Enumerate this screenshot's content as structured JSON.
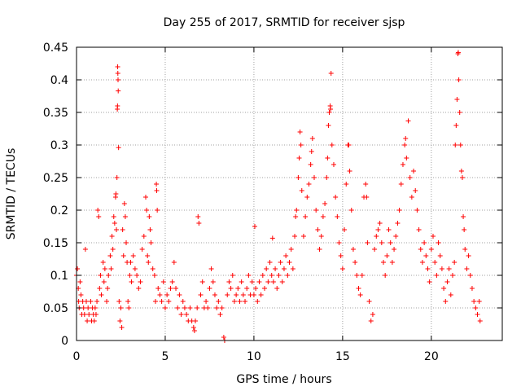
{
  "chart_data": {
    "type": "scatter",
    "title": "Day 255 of 2017, SRMTID for receiver sjsp",
    "xlabel": "GPS time / hours",
    "ylabel": "SRMTID / TECUs",
    "xlim": [
      0,
      24
    ],
    "ylim": [
      0,
      0.45
    ],
    "x_ticks": [
      {
        "value": 0,
        "label": "0"
      },
      {
        "value": 5,
        "label": "5"
      },
      {
        "value": 10,
        "label": "10"
      },
      {
        "value": 15,
        "label": "15"
      },
      {
        "value": 20,
        "label": "20"
      }
    ],
    "y_ticks": [
      {
        "value": 0,
        "label": "0"
      },
      {
        "value": 0.05,
        "label": "0.05"
      },
      {
        "value": 0.1,
        "label": "0.1"
      },
      {
        "value": 0.15,
        "label": "0.15"
      },
      {
        "value": 0.2,
        "label": "0.2"
      },
      {
        "value": 0.25,
        "label": "0.25"
      },
      {
        "value": 0.3,
        "label": "0.3"
      },
      {
        "value": 0.35,
        "label": "0.35"
      },
      {
        "value": 0.4,
        "label": "0.4"
      },
      {
        "value": 0.45,
        "label": "0.45"
      }
    ],
    "grid": true,
    "marker": "+",
    "marker_color": "#ff0000",
    "series": [
      {
        "name": "SRMTID",
        "points": [
          [
            0.0,
            0.1
          ],
          [
            0.05,
            0.11
          ],
          [
            0.1,
            0.08
          ],
          [
            0.12,
            0.06
          ],
          [
            0.15,
            0.05
          ],
          [
            0.2,
            0.09
          ],
          [
            0.25,
            0.07
          ],
          [
            0.3,
            0.04
          ],
          [
            0.35,
            0.06
          ],
          [
            0.4,
            0.05
          ],
          [
            0.45,
            0.04
          ],
          [
            0.5,
            0.14
          ],
          [
            0.55,
            0.06
          ],
          [
            0.6,
            0.03
          ],
          [
            0.65,
            0.05
          ],
          [
            0.7,
            0.04
          ],
          [
            0.8,
            0.06
          ],
          [
            0.85,
            0.03
          ],
          [
            0.9,
            0.05
          ],
          [
            0.95,
            0.04
          ],
          [
            1.0,
            0.03
          ],
          [
            1.05,
            0.05
          ],
          [
            1.1,
            0.04
          ],
          [
            1.15,
            0.06
          ],
          [
            1.2,
            0.2
          ],
          [
            1.25,
            0.19
          ],
          [
            1.3,
            0.08
          ],
          [
            1.35,
            0.1
          ],
          [
            1.4,
            0.07
          ],
          [
            1.5,
            0.12
          ],
          [
            1.55,
            0.09
          ],
          [
            1.6,
            0.11
          ],
          [
            1.7,
            0.06
          ],
          [
            1.75,
            0.08
          ],
          [
            1.8,
            0.1
          ],
          [
            1.9,
            0.13
          ],
          [
            1.95,
            0.11
          ],
          [
            2.0,
            0.16
          ],
          [
            2.05,
            0.14
          ],
          [
            2.1,
            0.19
          ],
          [
            2.15,
            0.18
          ],
          [
            2.2,
            0.22
          ],
          [
            2.22,
            0.225
          ],
          [
            2.25,
            0.17
          ],
          [
            2.28,
            0.25
          ],
          [
            2.3,
            0.355
          ],
          [
            2.31,
            0.36
          ],
          [
            2.32,
            0.42
          ],
          [
            2.33,
            0.41
          ],
          [
            2.34,
            0.4
          ],
          [
            2.35,
            0.383
          ],
          [
            2.37,
            0.296
          ],
          [
            2.4,
            0.06
          ],
          [
            2.45,
            0.03
          ],
          [
            2.5,
            0.05
          ],
          [
            2.55,
            0.02
          ],
          [
            2.6,
            0.17
          ],
          [
            2.65,
            0.13
          ],
          [
            2.7,
            0.21
          ],
          [
            2.75,
            0.19
          ],
          [
            2.8,
            0.15
          ],
          [
            2.85,
            0.12
          ],
          [
            2.9,
            0.06
          ],
          [
            2.95,
            0.05
          ],
          [
            3.0,
            0.1
          ],
          [
            3.05,
            0.12
          ],
          [
            3.1,
            0.09
          ],
          [
            3.2,
            0.13
          ],
          [
            3.3,
            0.11
          ],
          [
            3.4,
            0.1
          ],
          [
            3.5,
            0.08
          ],
          [
            3.6,
            0.09
          ],
          [
            3.7,
            0.14
          ],
          [
            3.8,
            0.16
          ],
          [
            3.9,
            0.22
          ],
          [
            3.95,
            0.2
          ],
          [
            4.0,
            0.13
          ],
          [
            4.05,
            0.12
          ],
          [
            4.1,
            0.19
          ],
          [
            4.15,
            0.17
          ],
          [
            4.2,
            0.15
          ],
          [
            4.3,
            0.11
          ],
          [
            4.4,
            0.1
          ],
          [
            4.45,
            0.06
          ],
          [
            4.5,
            0.24
          ],
          [
            4.52,
            0.23
          ],
          [
            4.55,
            0.2
          ],
          [
            4.6,
            0.08
          ],
          [
            4.7,
            0.07
          ],
          [
            4.8,
            0.06
          ],
          [
            4.9,
            0.09
          ],
          [
            5.0,
            0.05
          ],
          [
            5.1,
            0.07
          ],
          [
            5.2,
            0.06
          ],
          [
            5.3,
            0.08
          ],
          [
            5.4,
            0.09
          ],
          [
            5.5,
            0.12
          ],
          [
            5.6,
            0.08
          ],
          [
            5.7,
            0.05
          ],
          [
            5.8,
            0.07
          ],
          [
            5.9,
            0.04
          ],
          [
            6.0,
            0.06
          ],
          [
            6.1,
            0.05
          ],
          [
            6.2,
            0.04
          ],
          [
            6.3,
            0.03
          ],
          [
            6.4,
            0.05
          ],
          [
            6.5,
            0.03
          ],
          [
            6.6,
            0.02
          ],
          [
            6.65,
            0.015
          ],
          [
            6.7,
            0.03
          ],
          [
            6.8,
            0.05
          ],
          [
            6.85,
            0.19
          ],
          [
            6.9,
            0.18
          ],
          [
            7.0,
            0.07
          ],
          [
            7.1,
            0.09
          ],
          [
            7.2,
            0.05
          ],
          [
            7.3,
            0.06
          ],
          [
            7.4,
            0.05
          ],
          [
            7.5,
            0.08
          ],
          [
            7.6,
            0.11
          ],
          [
            7.7,
            0.09
          ],
          [
            7.8,
            0.07
          ],
          [
            7.9,
            0.05
          ],
          [
            8.0,
            0.06
          ],
          [
            8.1,
            0.04
          ],
          [
            8.2,
            0.05
          ],
          [
            8.3,
            0.005
          ],
          [
            8.35,
            0.0
          ],
          [
            8.5,
            0.07
          ],
          [
            8.6,
            0.09
          ],
          [
            8.7,
            0.08
          ],
          [
            8.8,
            0.1
          ],
          [
            8.9,
            0.06
          ],
          [
            9.0,
            0.07
          ],
          [
            9.1,
            0.08
          ],
          [
            9.2,
            0.06
          ],
          [
            9.3,
            0.09
          ],
          [
            9.4,
            0.07
          ],
          [
            9.5,
            0.06
          ],
          [
            9.6,
            0.08
          ],
          [
            9.7,
            0.1
          ],
          [
            9.8,
            0.07
          ],
          [
            9.9,
            0.09
          ],
          [
            10.0,
            0.07
          ],
          [
            10.05,
            0.175
          ],
          [
            10.1,
            0.08
          ],
          [
            10.2,
            0.06
          ],
          [
            10.3,
            0.09
          ],
          [
            10.4,
            0.07
          ],
          [
            10.5,
            0.1
          ],
          [
            10.6,
            0.08
          ],
          [
            10.7,
            0.11
          ],
          [
            10.8,
            0.09
          ],
          [
            10.9,
            0.12
          ],
          [
            11.0,
            0.1
          ],
          [
            11.05,
            0.157
          ],
          [
            11.1,
            0.09
          ],
          [
            11.2,
            0.11
          ],
          [
            11.3,
            0.08
          ],
          [
            11.4,
            0.1
          ],
          [
            11.5,
            0.12
          ],
          [
            11.6,
            0.09
          ],
          [
            11.7,
            0.11
          ],
          [
            11.8,
            0.13
          ],
          [
            11.9,
            0.1
          ],
          [
            12.0,
            0.12
          ],
          [
            12.1,
            0.14
          ],
          [
            12.2,
            0.11
          ],
          [
            12.3,
            0.16
          ],
          [
            12.35,
            0.19
          ],
          [
            12.4,
            0.2
          ],
          [
            12.5,
            0.25
          ],
          [
            12.55,
            0.28
          ],
          [
            12.6,
            0.32
          ],
          [
            12.65,
            0.3
          ],
          [
            12.7,
            0.23
          ],
          [
            12.8,
            0.16
          ],
          [
            12.9,
            0.19
          ],
          [
            13.0,
            0.22
          ],
          [
            13.1,
            0.24
          ],
          [
            13.2,
            0.27
          ],
          [
            13.25,
            0.29
          ],
          [
            13.3,
            0.31
          ],
          [
            13.4,
            0.25
          ],
          [
            13.5,
            0.2
          ],
          [
            13.6,
            0.17
          ],
          [
            13.7,
            0.14
          ],
          [
            13.8,
            0.16
          ],
          [
            13.9,
            0.19
          ],
          [
            14.0,
            0.21
          ],
          [
            14.1,
            0.25
          ],
          [
            14.15,
            0.28
          ],
          [
            14.2,
            0.33
          ],
          [
            14.25,
            0.35
          ],
          [
            14.3,
            0.36
          ],
          [
            14.32,
            0.355
          ],
          [
            14.35,
            0.41
          ],
          [
            14.4,
            0.3
          ],
          [
            14.5,
            0.27
          ],
          [
            14.6,
            0.22
          ],
          [
            14.7,
            0.19
          ],
          [
            14.8,
            0.15
          ],
          [
            14.9,
            0.13
          ],
          [
            15.0,
            0.11
          ],
          [
            15.1,
            0.17
          ],
          [
            15.2,
            0.24
          ],
          [
            15.3,
            0.3
          ],
          [
            15.35,
            0.3
          ],
          [
            15.4,
            0.26
          ],
          [
            15.5,
            0.2
          ],
          [
            15.6,
            0.14
          ],
          [
            15.7,
            0.12
          ],
          [
            15.8,
            0.1
          ],
          [
            15.9,
            0.08
          ],
          [
            16.0,
            0.07
          ],
          [
            16.1,
            0.1
          ],
          [
            16.2,
            0.22
          ],
          [
            16.3,
            0.24
          ],
          [
            16.35,
            0.22
          ],
          [
            16.4,
            0.15
          ],
          [
            16.5,
            0.06
          ],
          [
            16.6,
            0.03
          ],
          [
            16.7,
            0.04
          ],
          [
            16.8,
            0.14
          ],
          [
            16.9,
            0.16
          ],
          [
            17.0,
            0.17
          ],
          [
            17.1,
            0.18
          ],
          [
            17.2,
            0.15
          ],
          [
            17.3,
            0.12
          ],
          [
            17.4,
            0.1
          ],
          [
            17.5,
            0.13
          ],
          [
            17.6,
            0.17
          ],
          [
            17.7,
            0.15
          ],
          [
            17.8,
            0.12
          ],
          [
            17.9,
            0.14
          ],
          [
            18.0,
            0.16
          ],
          [
            18.1,
            0.18
          ],
          [
            18.2,
            0.2
          ],
          [
            18.3,
            0.24
          ],
          [
            18.4,
            0.27
          ],
          [
            18.5,
            0.3
          ],
          [
            18.55,
            0.31
          ],
          [
            18.6,
            0.28
          ],
          [
            18.7,
            0.337
          ],
          [
            18.8,
            0.25
          ],
          [
            18.9,
            0.22
          ],
          [
            19.0,
            0.26
          ],
          [
            19.1,
            0.23
          ],
          [
            19.2,
            0.2
          ],
          [
            19.3,
            0.17
          ],
          [
            19.4,
            0.14
          ],
          [
            19.5,
            0.12
          ],
          [
            19.6,
            0.15
          ],
          [
            19.7,
            0.13
          ],
          [
            19.8,
            0.11
          ],
          [
            19.9,
            0.09
          ],
          [
            20.0,
            0.14
          ],
          [
            20.1,
            0.16
          ],
          [
            20.2,
            0.12
          ],
          [
            20.3,
            0.1
          ],
          [
            20.4,
            0.15
          ],
          [
            20.5,
            0.13
          ],
          [
            20.6,
            0.11
          ],
          [
            20.7,
            0.08
          ],
          [
            20.8,
            0.06
          ],
          [
            20.9,
            0.09
          ],
          [
            21.0,
            0.11
          ],
          [
            21.1,
            0.07
          ],
          [
            21.2,
            0.1
          ],
          [
            21.3,
            0.12
          ],
          [
            21.35,
            0.3
          ],
          [
            21.4,
            0.33
          ],
          [
            21.45,
            0.37
          ],
          [
            21.5,
            0.44
          ],
          [
            21.52,
            0.442
          ],
          [
            21.55,
            0.4
          ],
          [
            21.6,
            0.35
          ],
          [
            21.65,
            0.3
          ],
          [
            21.7,
            0.26
          ],
          [
            21.75,
            0.25
          ],
          [
            21.8,
            0.19
          ],
          [
            21.85,
            0.17
          ],
          [
            21.9,
            0.14
          ],
          [
            22.0,
            0.11
          ],
          [
            22.1,
            0.13
          ],
          [
            22.2,
            0.1
          ],
          [
            22.3,
            0.08
          ],
          [
            22.4,
            0.06
          ],
          [
            22.5,
            0.05
          ],
          [
            22.6,
            0.04
          ],
          [
            22.7,
            0.06
          ],
          [
            22.75,
            0.03
          ]
        ]
      }
    ]
  }
}
